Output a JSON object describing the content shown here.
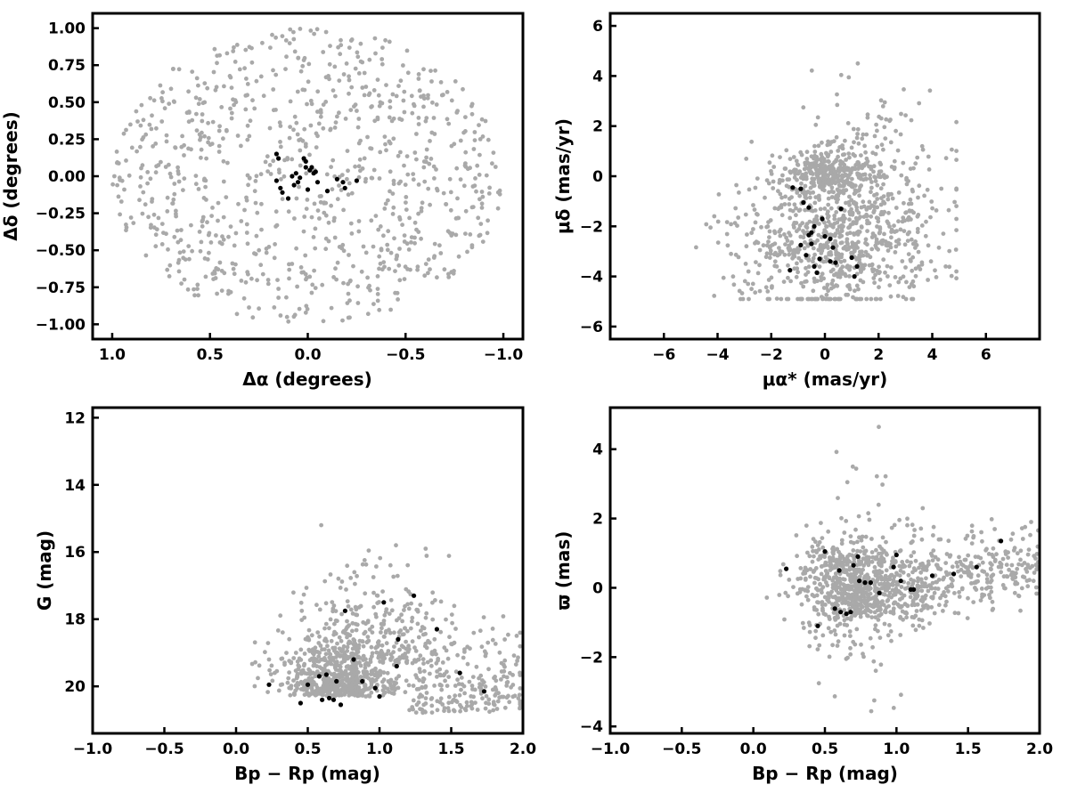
{
  "colors": {
    "field_stars": "#a9a9a9",
    "members": "#000000",
    "axes": "#000000"
  },
  "chart_data": [
    {
      "id": "sky",
      "type": "scatter",
      "title": "",
      "xlabel": "Δα (degrees)",
      "ylabel": "Δδ (degrees)",
      "xlim": [
        1.1,
        -1.1
      ],
      "ylim": [
        -1.1,
        1.1
      ],
      "x_reversed": true,
      "xticks": [
        1.0,
        0.5,
        0.0,
        -0.5,
        -1.0
      ],
      "xtick_labels": [
        "1.0",
        "0.5",
        "0.0",
        "−0.5",
        "−1.0"
      ],
      "yticks": [
        1.0,
        0.75,
        0.5,
        0.25,
        0.0,
        -0.25,
        -0.5,
        -0.75,
        -1.0
      ],
      "ytick_labels": [
        "1.00",
        "0.75",
        "0.50",
        "0.25",
        "0.00",
        "−0.25",
        "−0.50",
        "−0.75",
        "−1.00"
      ],
      "grid": false,
      "legend": "none",
      "series": [
        {
          "role": "field",
          "distribution": {
            "shape": "disk",
            "center": [
              0,
              0
            ],
            "radius": 1.0,
            "count": 900,
            "seed": 11
          }
        },
        {
          "role": "members",
          "points": [
            [
              0.16,
              0.15
            ],
            [
              0.15,
              0.12
            ],
            [
              0.16,
              -0.03
            ],
            [
              0.14,
              -0.08
            ],
            [
              0.13,
              -0.11
            ],
            [
              0.1,
              -0.15
            ],
            [
              0.08,
              0.0
            ],
            [
              0.07,
              -0.06
            ],
            [
              0.06,
              0.02
            ],
            [
              0.04,
              -0.01
            ],
            [
              0.02,
              0.12
            ],
            [
              0.01,
              0.1
            ],
            [
              0.01,
              0.06
            ],
            [
              -0.01,
              0.04
            ],
            [
              -0.02,
              0.06
            ],
            [
              -0.03,
              0.02
            ],
            [
              0.0,
              -0.09
            ],
            [
              -0.05,
              -0.04
            ],
            [
              -0.1,
              -0.1
            ],
            [
              -0.15,
              -0.02
            ],
            [
              -0.18,
              -0.04
            ],
            [
              -0.19,
              -0.08
            ],
            [
              -0.25,
              -0.03
            ],
            [
              -0.04,
              0.03
            ],
            [
              0.05,
              -0.04
            ]
          ]
        }
      ]
    },
    {
      "id": "proper-motion",
      "type": "scatter",
      "title": "",
      "xlabel": "μα* (mas/yr)",
      "ylabel": "μδ (mas/yr)",
      "xlim": [
        -8,
        8
      ],
      "ylim": [
        -6.5,
        6.5
      ],
      "xticks": [
        -6,
        -4,
        -2,
        0,
        2,
        4,
        6
      ],
      "xtick_labels": [
        "−6",
        "−4",
        "−2",
        "0",
        "2",
        "4",
        "6"
      ],
      "yticks": [
        6,
        4,
        2,
        0,
        -2,
        -4,
        -6
      ],
      "ytick_labels": [
        "6",
        "4",
        "2",
        "0",
        "−2",
        "−4",
        "−6"
      ],
      "grid": false,
      "legend": "none",
      "series": [
        {
          "role": "field",
          "distribution": {
            "shape": "cloud",
            "center": [
              0.3,
              -1.8
            ],
            "spread": [
              1.9,
              1.6
            ],
            "xrange": [
              -4.8,
              4.9
            ],
            "yrange": [
              -4.9,
              4.5
            ],
            "count": 1200,
            "seed": 23
          }
        },
        {
          "role": "members",
          "points": [
            [
              -1.2,
              -0.45
            ],
            [
              -0.9,
              -0.5
            ],
            [
              -0.8,
              -1.05
            ],
            [
              -0.6,
              -1.25
            ],
            [
              -0.4,
              -2.0
            ],
            [
              -0.1,
              -1.7
            ],
            [
              0.6,
              -1.3
            ],
            [
              0.0,
              -2.4
            ],
            [
              0.2,
              -2.5
            ],
            [
              -0.6,
              -2.35
            ],
            [
              -0.9,
              -2.75
            ],
            [
              -0.5,
              -2.7
            ],
            [
              0.3,
              -2.85
            ],
            [
              -0.7,
              -3.15
            ],
            [
              -0.2,
              -3.3
            ],
            [
              0.2,
              -3.4
            ],
            [
              0.4,
              -3.45
            ],
            [
              -0.4,
              -3.6
            ],
            [
              -0.3,
              -3.85
            ],
            [
              -1.3,
              -3.75
            ],
            [
              1.2,
              -3.6
            ],
            [
              1.1,
              -4.0
            ],
            [
              1.0,
              -3.25
            ],
            [
              -0.5,
              -2.25
            ]
          ]
        }
      ]
    },
    {
      "id": "cmd",
      "type": "scatter",
      "title": "",
      "xlabel": "Bp − Rp (mag)",
      "ylabel": "G (mag)",
      "xlim": [
        -1.0,
        2.0
      ],
      "ylim": [
        21.4,
        11.7
      ],
      "y_reversed": true,
      "xticks": [
        -1.0,
        -0.5,
        0.0,
        0.5,
        1.0,
        1.5,
        2.0
      ],
      "xtick_labels": [
        "−1.0",
        "−0.5",
        "0.0",
        "0.5",
        "1.0",
        "1.5",
        "2.0"
      ],
      "yticks": [
        20,
        18,
        16,
        14,
        12
      ],
      "ytick_labels": [
        "20",
        "18",
        "16",
        "14",
        "12"
      ],
      "grid": false,
      "legend": "none",
      "series": [
        {
          "role": "field",
          "distribution": {
            "shape": "cmd",
            "count": 1100,
            "seed": 37
          }
        },
        {
          "role": "members",
          "points": [
            [
              0.23,
              19.95
            ],
            [
              0.45,
              20.5
            ],
            [
              0.5,
              19.95
            ],
            [
              0.58,
              19.7
            ],
            [
              0.6,
              20.4
            ],
            [
              0.63,
              19.65
            ],
            [
              0.65,
              20.35
            ],
            [
              0.68,
              20.4
            ],
            [
              0.7,
              19.85
            ],
            [
              0.73,
              20.55
            ],
            [
              0.76,
              17.75
            ],
            [
              0.82,
              19.2
            ],
            [
              0.88,
              19.85
            ],
            [
              0.97,
              20.05
            ],
            [
              1.0,
              20.3
            ],
            [
              1.03,
              17.5
            ],
            [
              1.12,
              19.4
            ],
            [
              1.13,
              18.6
            ],
            [
              1.24,
              17.3
            ],
            [
              1.4,
              18.3
            ],
            [
              1.56,
              19.6
            ],
            [
              1.73,
              20.15
            ]
          ]
        }
      ]
    },
    {
      "id": "parallax",
      "type": "scatter",
      "title": "",
      "xlabel": "Bp − Rp (mag)",
      "ylabel": "ϖ (mas)",
      "xlim": [
        -1.0,
        2.0
      ],
      "ylim": [
        -4.2,
        5.2
      ],
      "xticks": [
        -1.0,
        -0.5,
        0.0,
        0.5,
        1.0,
        1.5,
        2.0
      ],
      "xtick_labels": [
        "−1.0",
        "−0.5",
        "0.0",
        "0.5",
        "1.0",
        "1.5",
        "2.0"
      ],
      "yticks": [
        4,
        2,
        0,
        -2,
        -4
      ],
      "ytick_labels": [
        "4",
        "2",
        "0",
        "−2",
        "−4"
      ],
      "grid": false,
      "legend": "none",
      "series": [
        {
          "role": "field",
          "distribution": {
            "shape": "parallax",
            "count": 1100,
            "seed": 53
          }
        },
        {
          "role": "members",
          "points": [
            [
              0.23,
              0.55
            ],
            [
              0.45,
              -1.1
            ],
            [
              0.5,
              1.05
            ],
            [
              0.57,
              -0.6
            ],
            [
              0.6,
              0.5
            ],
            [
              0.61,
              -0.7
            ],
            [
              0.65,
              -0.75
            ],
            [
              0.68,
              -0.7
            ],
            [
              0.7,
              0.65
            ],
            [
              0.73,
              0.9
            ],
            [
              0.74,
              0.2
            ],
            [
              0.78,
              0.15
            ],
            [
              0.82,
              0.15
            ],
            [
              0.88,
              -0.15
            ],
            [
              0.98,
              0.6
            ],
            [
              1.0,
              0.95
            ],
            [
              1.03,
              0.2
            ],
            [
              1.1,
              -0.05
            ],
            [
              1.12,
              -0.05
            ],
            [
              1.25,
              0.35
            ],
            [
              1.4,
              0.4
            ],
            [
              1.56,
              0.6
            ],
            [
              1.73,
              1.35
            ]
          ]
        }
      ]
    }
  ]
}
